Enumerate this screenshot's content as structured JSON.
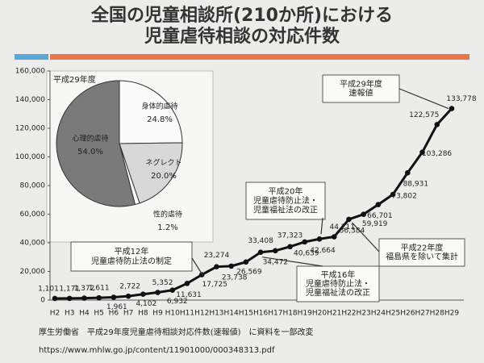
{
  "chart_data": [
    {
      "type": "line",
      "title": [
        "全国の児童相談所(210か所)における",
        "児童虐待相談の対応件数"
      ],
      "categories": [
        "H2",
        "H3",
        "H4",
        "H5",
        "H6",
        "H7",
        "H8",
        "H9",
        "H10",
        "H11",
        "H12",
        "H13",
        "H14",
        "H15",
        "H16",
        "H17",
        "H18",
        "H19",
        "H20",
        "H21",
        "H22",
        "H23",
        "H24",
        "H25",
        "H26",
        "H27",
        "H28",
        "H29"
      ],
      "values": [
        1101,
        1171,
        1372,
        1611,
        1961,
        2722,
        4102,
        5352,
        6932,
        11631,
        17725,
        23274,
        23738,
        26569,
        33408,
        34472,
        37323,
        40639,
        42664,
        44211,
        56384,
        59919,
        66701,
        73802,
        88931,
        103286,
        122575,
        133778
      ],
      "value_labels": [
        "1,101",
        "1,171",
        "1,372",
        "1,611",
        "1,961",
        "2,722",
        "4,102",
        "5,352",
        "6,932",
        "11,631",
        "17,725",
        "23,274",
        "23,738",
        "26,569",
        "33,408",
        "34,472",
        "37,323",
        "40,639",
        "42,664",
        "44,211",
        "56,384",
        "59,919",
        "66,701",
        "73,802",
        "88,931",
        "103,286",
        "122,575",
        "133,778"
      ],
      "color": "#111",
      "ylim": [
        0,
        160000
      ],
      "yticks": [
        0,
        {
          "value": 20000,
          "label": "20,000"
        },
        {
          "value": 40000,
          "label": "40,000"
        },
        {
          "value": 60000,
          "label": "60,000"
        },
        {
          "value": 80000,
          "label": "80,000"
        },
        {
          "value": 100000,
          "label": "100,000"
        },
        {
          "value": 120000,
          "label": "120,000"
        },
        {
          "value": 140000,
          "label": "140,000"
        },
        {
          "value": 160000,
          "label": "160,000"
        }
      ],
      "annotations": [
        [
          "平成29年度",
          "速報値"
        ],
        [
          "平成20年",
          "児童虐待防止法・",
          "児童福祉法の改正"
        ],
        [
          "平成12年",
          "児童虐待防止法の制定"
        ],
        [
          "平成16年",
          "児童虐待防止法・",
          "児童福祉法の改正"
        ],
        [
          "平成22年度",
          "福島県を除いて集計"
        ]
      ],
      "source": [
        "厚生労働省　平成29年度児童虐待相談対応件数(速報値)　に資料を一部改変",
        "https://www.mhlw.go.jp/content/11901000/000348313.pdf"
      ]
    },
    {
      "type": "pie",
      "title": "平成29年度",
      "categories": [
        "身体的虐待",
        "ネグレクト",
        "性的虐待",
        "心理的虐待"
      ],
      "values": [
        24.8,
        20.0,
        1.2,
        54.0
      ],
      "value_labels": [
        "24.8%",
        "20.0%",
        "1.2%",
        "54.0%"
      ],
      "colors": [
        "#fafafa",
        "#d8d8d8",
        "#fafafa",
        "#7a7a7a"
      ]
    }
  ]
}
